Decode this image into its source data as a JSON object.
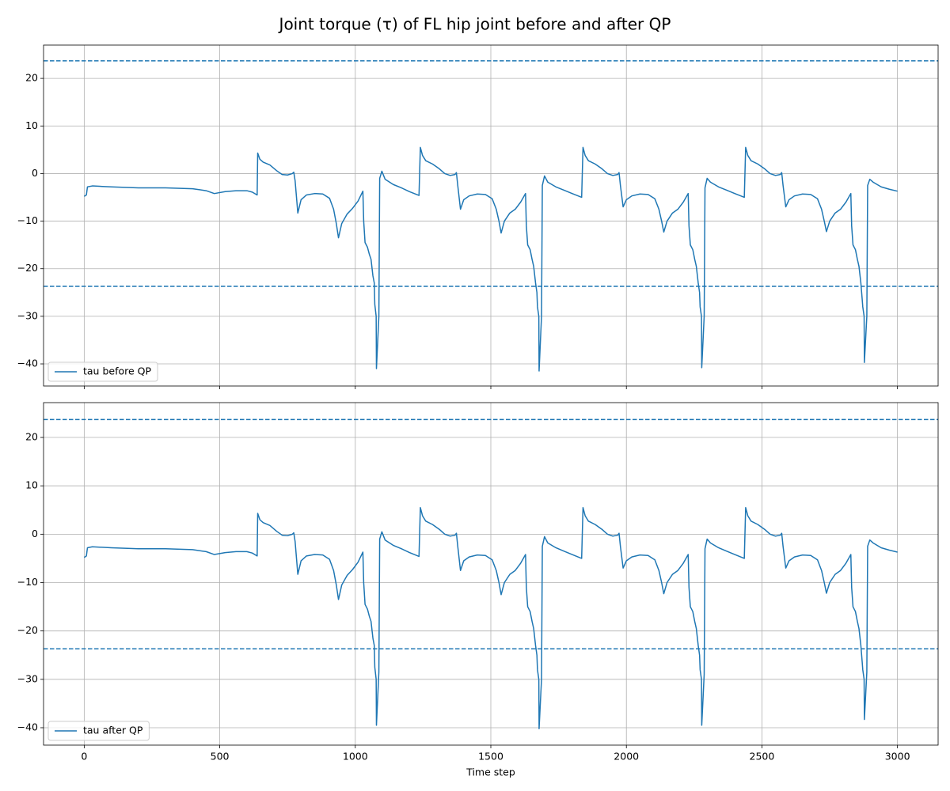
{
  "title": "Joint torque (τ) of FL hip joint before and after QP",
  "chart_data": [
    {
      "type": "line",
      "x": [
        0,
        8,
        12,
        30,
        100,
        200,
        300,
        400,
        450,
        480,
        520,
        560,
        600,
        620,
        638,
        640,
        648,
        660,
        685,
        710,
        730,
        750,
        768,
        773,
        778,
        788,
        800,
        820,
        850,
        880,
        905,
        920,
        930,
        938,
        950,
        970,
        990,
        1010,
        1028,
        1031,
        1036,
        1045,
        1052,
        1058,
        1065,
        1070,
        1072,
        1077,
        1078,
        1087,
        1090,
        1098,
        1110,
        1140,
        1170,
        1200,
        1235,
        1240,
        1248,
        1260,
        1285,
        1310,
        1330,
        1350,
        1368,
        1373,
        1378,
        1388,
        1400,
        1420,
        1450,
        1480,
        1505,
        1520,
        1530,
        1538,
        1550,
        1570,
        1590,
        1610,
        1628,
        1631,
        1636,
        1645,
        1652,
        1658,
        1665,
        1670,
        1672,
        1677,
        1678,
        1687,
        1690,
        1698,
        1710,
        1740,
        1770,
        1800,
        1835,
        1840,
        1848,
        1860,
        1885,
        1910,
        1930,
        1950,
        1968,
        1973,
        1978,
        1988,
        2000,
        2020,
        2050,
        2080,
        2105,
        2120,
        2130,
        2138,
        2150,
        2170,
        2190,
        2210,
        2228,
        2231,
        2236,
        2245,
        2252,
        2258,
        2265,
        2270,
        2272,
        2277,
        2278,
        2287,
        2290,
        2298,
        2310,
        2340,
        2370,
        2400,
        2435,
        2440,
        2448,
        2460,
        2485,
        2510,
        2530,
        2550,
        2568,
        2573,
        2578,
        2588,
        2600,
        2620,
        2650,
        2680,
        2705,
        2720,
        2730,
        2738,
        2750,
        2770,
        2790,
        2810,
        2828,
        2831,
        2836,
        2845,
        2852,
        2858,
        2865,
        2870,
        2872,
        2877,
        2878,
        2887,
        2890,
        2898,
        2910,
        2940,
        2970,
        3000
      ],
      "series": [
        {
          "name": "tau before QP",
          "color": "#1f77b4",
          "values": [
            -4.8,
            -4.5,
            -2.8,
            -2.6,
            -2.8,
            -3.0,
            -3.0,
            -3.2,
            -3.6,
            -4.2,
            -3.8,
            -3.6,
            -3.6,
            -3.9,
            -4.5,
            4.3,
            3.0,
            2.4,
            1.8,
            0.6,
            -0.2,
            -0.3,
            0,
            0.3,
            -1.5,
            -8.3,
            -5.5,
            -4.5,
            -4.2,
            -4.3,
            -5.2,
            -7.5,
            -10.5,
            -13.5,
            -10.5,
            -8.5,
            -7.3,
            -5.8,
            -3.7,
            -10,
            -14.5,
            -15.5,
            -17,
            -18,
            -21.5,
            -23,
            -27.5,
            -30,
            -41,
            -30,
            -1,
            0.5,
            -1.2,
            -2.3,
            -3,
            -3.8,
            -4.6,
            5.5,
            3.8,
            2.7,
            2.0,
            1.0,
            0,
            -0.4,
            -0.2,
            0.2,
            -2.5,
            -7.5,
            -5.5,
            -4.7,
            -4.3,
            -4.4,
            -5.3,
            -7.5,
            -10,
            -12.5,
            -10,
            -8.3,
            -7.5,
            -6,
            -4.2,
            -11,
            -15,
            -16,
            -18,
            -19.5,
            -23,
            -25,
            -28,
            -30,
            -41.5,
            -30,
            -2.5,
            -0.5,
            -1.8,
            -2.8,
            -3.5,
            -4.2,
            -5,
            5.5,
            3.8,
            2.7,
            2.0,
            1.0,
            0,
            -0.4,
            -0.2,
            0.2,
            -2.5,
            -7,
            -5.5,
            -4.7,
            -4.3,
            -4.4,
            -5.3,
            -7.5,
            -10,
            -12.3,
            -10,
            -8.3,
            -7.5,
            -6,
            -4.2,
            -11,
            -15,
            -16,
            -18,
            -19.5,
            -23,
            -25,
            -28,
            -30,
            -40.8,
            -30,
            -3,
            -1,
            -1.8,
            -2.8,
            -3.5,
            -4.2,
            -5,
            5.5,
            3.8,
            2.7,
            2.0,
            1.0,
            0,
            -0.4,
            -0.2,
            0.2,
            -2.5,
            -7,
            -5.5,
            -4.7,
            -4.3,
            -4.4,
            -5.3,
            -7.5,
            -10,
            -12.2,
            -10,
            -8.3,
            -7.5,
            -6,
            -4.2,
            -11,
            -15,
            -16,
            -18,
            -19.5,
            -23,
            -26.5,
            -28,
            -30,
            -39.7,
            -30,
            -2.5,
            -1.2,
            -1.8,
            -2.8,
            -3.3,
            -3.7
          ]
        }
      ],
      "hlines": [
        23.7,
        -23.7
      ],
      "xlim": [
        -150,
        3150
      ],
      "xticks": [
        0,
        500,
        1000,
        1500,
        2000,
        2500,
        3000
      ],
      "show_xtick_labels": false,
      "ylim": [
        -44.65,
        27
      ],
      "yticks": [
        {
          "value": -40,
          "label": "−40"
        },
        {
          "value": -30,
          "label": "−30"
        },
        {
          "value": -20,
          "label": "−20"
        },
        {
          "value": -10,
          "label": "−10"
        },
        0,
        10,
        20
      ],
      "grid": true,
      "legend": "lower left"
    },
    {
      "type": "line",
      "xlabel": "Time step",
      "x": [
        0,
        8,
        12,
        30,
        100,
        200,
        300,
        400,
        450,
        480,
        520,
        560,
        600,
        620,
        638,
        640,
        648,
        660,
        685,
        710,
        730,
        750,
        768,
        773,
        778,
        788,
        800,
        820,
        850,
        880,
        905,
        920,
        930,
        938,
        950,
        970,
        990,
        1010,
        1028,
        1031,
        1036,
        1045,
        1052,
        1058,
        1065,
        1070,
        1072,
        1077,
        1078,
        1087,
        1090,
        1098,
        1110,
        1140,
        1170,
        1200,
        1235,
        1240,
        1248,
        1260,
        1285,
        1310,
        1330,
        1350,
        1368,
        1373,
        1378,
        1388,
        1400,
        1420,
        1450,
        1480,
        1505,
        1520,
        1530,
        1538,
        1550,
        1570,
        1590,
        1610,
        1628,
        1631,
        1636,
        1645,
        1652,
        1658,
        1665,
        1670,
        1672,
        1677,
        1678,
        1687,
        1690,
        1698,
        1710,
        1740,
        1770,
        1800,
        1835,
        1840,
        1848,
        1860,
        1885,
        1910,
        1930,
        1950,
        1968,
        1973,
        1978,
        1988,
        2000,
        2020,
        2050,
        2080,
        2105,
        2120,
        2130,
        2138,
        2150,
        2170,
        2190,
        2210,
        2228,
        2231,
        2236,
        2245,
        2252,
        2258,
        2265,
        2270,
        2272,
        2277,
        2278,
        2287,
        2290,
        2298,
        2310,
        2340,
        2370,
        2400,
        2435,
        2440,
        2448,
        2460,
        2485,
        2510,
        2530,
        2550,
        2568,
        2573,
        2578,
        2588,
        2600,
        2620,
        2650,
        2680,
        2705,
        2720,
        2730,
        2738,
        2750,
        2770,
        2790,
        2810,
        2828,
        2831,
        2836,
        2845,
        2852,
        2858,
        2865,
        2870,
        2872,
        2877,
        2878,
        2887,
        2890,
        2898,
        2910,
        2940,
        2970,
        3000
      ],
      "series": [
        {
          "name": "tau after QP",
          "color": "#1f77b4",
          "values": [
            -4.8,
            -4.5,
            -2.8,
            -2.6,
            -2.8,
            -3.0,
            -3.0,
            -3.2,
            -3.6,
            -4.2,
            -3.8,
            -3.6,
            -3.6,
            -3.9,
            -4.5,
            4.3,
            3.0,
            2.4,
            1.8,
            0.6,
            -0.2,
            -0.3,
            0,
            0.3,
            -1.5,
            -8.3,
            -5.5,
            -4.5,
            -4.2,
            -4.3,
            -5.2,
            -7.5,
            -10.5,
            -13.5,
            -10.5,
            -8.5,
            -7.3,
            -5.8,
            -3.7,
            -10,
            -14.5,
            -15.5,
            -17,
            -18,
            -21.5,
            -23,
            -27.5,
            -30,
            -39.5,
            -28.5,
            -1,
            0.5,
            -1.2,
            -2.3,
            -3,
            -3.8,
            -4.6,
            5.5,
            3.8,
            2.7,
            2.0,
            1.0,
            0,
            -0.4,
            -0.2,
            0.2,
            -2.5,
            -7.5,
            -5.5,
            -4.7,
            -4.3,
            -4.4,
            -5.3,
            -7.5,
            -10,
            -12.5,
            -10,
            -8.3,
            -7.5,
            -6,
            -4.2,
            -11,
            -15,
            -16,
            -18,
            -19.5,
            -23,
            -25,
            -28,
            -30,
            -40.2,
            -30,
            -2.5,
            -0.5,
            -1.8,
            -2.8,
            -3.5,
            -4.2,
            -5,
            5.5,
            3.8,
            2.7,
            2.0,
            1.0,
            0,
            -0.4,
            -0.2,
            0.2,
            -2.5,
            -7,
            -5.5,
            -4.7,
            -4.3,
            -4.4,
            -5.3,
            -7.5,
            -10,
            -12.3,
            -10,
            -8.3,
            -7.5,
            -6,
            -4.2,
            -11,
            -15,
            -16,
            -18,
            -19.5,
            -23,
            -25,
            -28,
            -30,
            -39.5,
            -29,
            -3,
            -1,
            -1.8,
            -2.8,
            -3.5,
            -4.2,
            -5,
            5.5,
            3.8,
            2.7,
            2.0,
            1.0,
            0,
            -0.4,
            -0.2,
            0.2,
            -2.5,
            -7,
            -5.5,
            -4.7,
            -4.3,
            -4.4,
            -5.3,
            -7.5,
            -10,
            -12.2,
            -10,
            -8.3,
            -7.5,
            -6,
            -4.2,
            -11,
            -15,
            -16,
            -18,
            -19.5,
            -23,
            -26.5,
            -28,
            -30,
            -38.3,
            -28.5,
            -2.5,
            -1.2,
            -1.8,
            -2.8,
            -3.3,
            -3.7
          ]
        }
      ],
      "hlines": [
        23.7,
        -23.7
      ],
      "xlim": [
        -150,
        3150
      ],
      "xticks": [
        0,
        500,
        1000,
        1500,
        2000,
        2500,
        3000
      ],
      "show_xtick_labels": true,
      "ylim": [
        -43.6,
        27.2
      ],
      "yticks": [
        {
          "value": -40,
          "label": "−40"
        },
        {
          "value": -30,
          "label": "−30"
        },
        {
          "value": -20,
          "label": "−20"
        },
        {
          "value": -10,
          "label": "−10"
        },
        0,
        10,
        20
      ],
      "grid": true,
      "legend": "lower left"
    }
  ]
}
